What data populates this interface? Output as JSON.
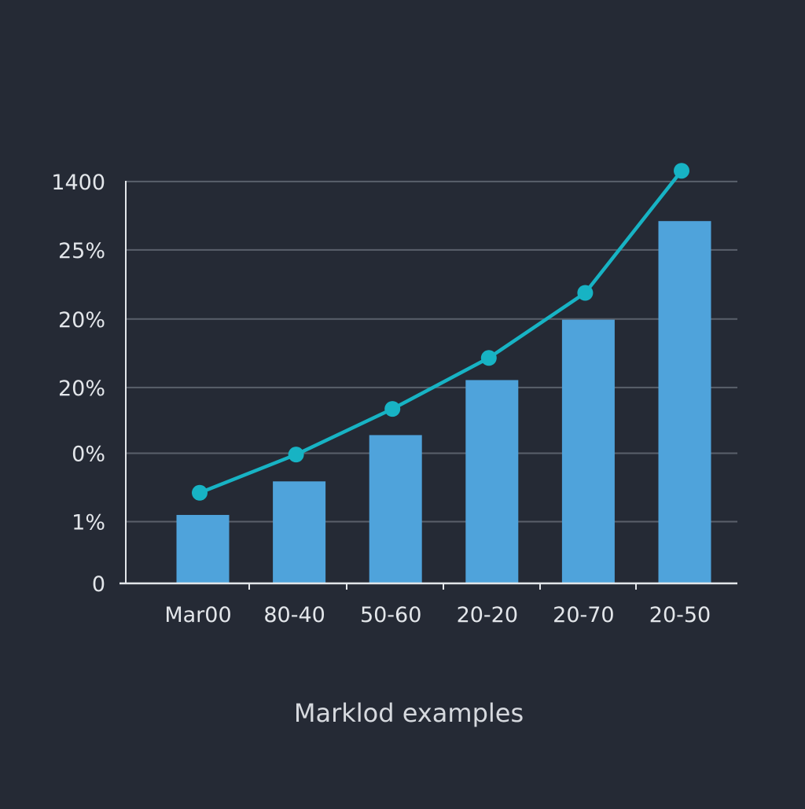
{
  "chart_data": {
    "type": "bar",
    "title": "",
    "xlabel": "Marklod examples",
    "ylabel": "",
    "categories": [
      "Mar00",
      "80-40",
      "50-60",
      "20-20",
      "20-70",
      "20-50"
    ],
    "y_ticks": [
      "0",
      "1%",
      "0%",
      "20%",
      "20%",
      "25%",
      "1400"
    ],
    "ylim": [
      0,
      6
    ],
    "grid": true,
    "legend": "none",
    "series": [
      {
        "kind": "bar",
        "color": "#4fa3db",
        "values": [
          1.02,
          1.52,
          2.21,
          3.03,
          3.93,
          5.4
        ]
      },
      {
        "kind": "line",
        "color": "#17b3c4",
        "values": [
          1.35,
          1.92,
          2.6,
          3.36,
          4.33,
          6.15
        ]
      }
    ],
    "colors": {
      "background": "#252a35",
      "grid": "#5a606b",
      "axis": "#e3e6ea",
      "text": "#e3e6ea"
    }
  }
}
